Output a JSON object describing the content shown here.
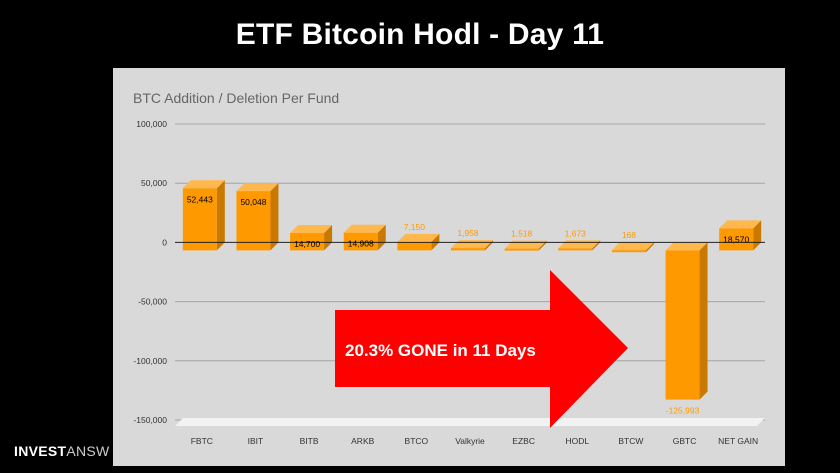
{
  "slide": {
    "title": "ETF Bitcoin Hodl - Day 11"
  },
  "brand": {
    "bold": "INVEST",
    "light": "ANSW"
  },
  "callout": {
    "text": "20.3% GONE in 11 Days",
    "color": "#ff0000"
  },
  "chart_data": {
    "type": "bar",
    "title": "BTC Addition / Deletion Per Fund",
    "xlabel": "",
    "ylabel": "",
    "ylim": [
      -150000,
      100000
    ],
    "yticks": [
      100000,
      50000,
      0,
      -50000,
      -100000,
      -150000
    ],
    "ytick_labels": [
      "100,000",
      "50,000",
      "0",
      "-50,000",
      "-100,000",
      "-150,000"
    ],
    "categories": [
      "FBTC",
      "IBIT",
      "BITB",
      "ARKB",
      "BTCO",
      "Valkyrie",
      "EZBC",
      "HODL",
      "BTCW",
      "GBTC",
      "NET GAIN"
    ],
    "values": [
      52443,
      50048,
      14700,
      14908,
      7150,
      1958,
      1518,
      1673,
      168,
      -125993,
      18570
    ],
    "value_labels": [
      "52,443",
      "50,048",
      "14,700",
      "14,908",
      "7,150",
      "1,958",
      "1,518",
      "1,673",
      "168",
      "-125,993",
      "18,570"
    ],
    "grid": true,
    "legend": "none",
    "colors": {
      "bar": "#ff9900",
      "bar_side": "#c97800",
      "bar_top": "#ffb84d",
      "grid": "#a6a6a6",
      "axis_text": "#333333",
      "title_text": "#666666",
      "label_inside": "#000000",
      "label_outside": "#ff9900"
    }
  }
}
